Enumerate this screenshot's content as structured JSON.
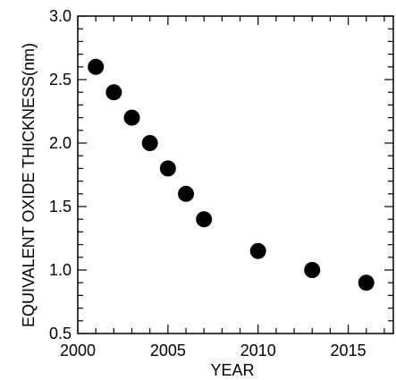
{
  "chart_data": {
    "type": "scatter",
    "title": "",
    "xlabel": "YEAR",
    "ylabel": "EQUIVALENT OXIDE THICKNESS(nm)",
    "xlim": [
      2000,
      2017.5
    ],
    "ylim": [
      0.5,
      3.0
    ],
    "x_ticks": [
      "2000",
      "2005",
      "2010",
      "2015"
    ],
    "y_ticks": [
      "0.5",
      "1.0",
      "1.5",
      "2.0",
      "2.5",
      "3.0"
    ],
    "grid": false,
    "legend": "none",
    "marker_color": "#000000",
    "points": [
      {
        "x": 2001,
        "y": 2.6
      },
      {
        "x": 2002,
        "y": 2.4
      },
      {
        "x": 2003,
        "y": 2.2
      },
      {
        "x": 2004,
        "y": 2.0
      },
      {
        "x": 2005,
        "y": 1.8
      },
      {
        "x": 2006,
        "y": 1.6
      },
      {
        "x": 2007,
        "y": 1.4
      },
      {
        "x": 2010,
        "y": 1.15
      },
      {
        "x": 2013,
        "y": 1.0
      },
      {
        "x": 2016,
        "y": 0.9
      }
    ]
  }
}
